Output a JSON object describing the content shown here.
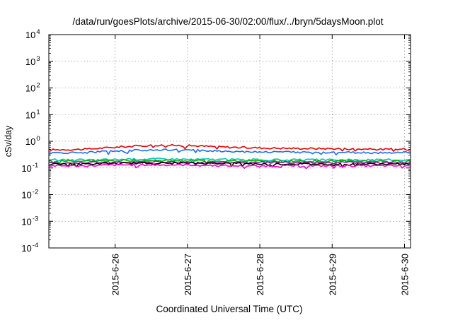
{
  "chart_data": {
    "type": "line",
    "title": "/data/run/goesPlots/archive/2015-06-30/02:00/flux/../bryn/5daysMoon.plot",
    "xlabel": "Coordinated Universal Time (UTC)",
    "ylabel": "cSv/day",
    "yscale": "log",
    "ylim": [
      0.0001,
      10000
    ],
    "xlim": [
      "2015-06-25 02:00",
      "2015-06-30 02:00"
    ],
    "yticks": [
      {
        "value": 0.0001,
        "base": "10",
        "exp": "-4"
      },
      {
        "value": 0.001,
        "base": "10",
        "exp": "-3"
      },
      {
        "value": 0.01,
        "base": "10",
        "exp": "-2"
      },
      {
        "value": 0.1,
        "base": "10",
        "exp": "-1"
      },
      {
        "value": 1,
        "base": "10",
        "exp": "0"
      },
      {
        "value": 10,
        "base": "10",
        "exp": "1"
      },
      {
        "value": 100,
        "base": "10",
        "exp": "2"
      },
      {
        "value": 1000,
        "base": "10",
        "exp": "3"
      },
      {
        "value": 10000,
        "base": "10",
        "exp": "4"
      }
    ],
    "xticks": [
      {
        "value": "2015-06-26 00:00",
        "label": "2015-6-26"
      },
      {
        "value": "2015-06-27 00:00",
        "label": "2015-6-27"
      },
      {
        "value": "2015-06-28 00:00",
        "label": "2015-6-28"
      },
      {
        "value": "2015-06-29 00:00",
        "label": "2015-6-29"
      },
      {
        "value": "2015-06-30 00:00",
        "label": "2015-6-30"
      }
    ],
    "grid": true,
    "legend": "none",
    "series": [
      {
        "color": "#ee0000",
        "x": [
          "2015-06-25 02:00",
          "2015-06-25 14:00",
          "2015-06-26 02:00",
          "2015-06-26 14:00",
          "2015-06-27 02:00",
          "2015-06-27 14:00",
          "2015-06-28 02:00",
          "2015-06-28 14:00",
          "2015-06-29 02:00",
          "2015-06-29 14:00",
          "2015-06-30 02:00"
        ],
        "y": [
          0.48,
          0.5,
          0.62,
          0.72,
          0.68,
          0.6,
          0.56,
          0.54,
          0.53,
          0.5,
          0.5
        ]
      },
      {
        "color": "#1a6cff",
        "x": [
          "2015-06-25 02:00",
          "2015-06-25 14:00",
          "2015-06-26 02:00",
          "2015-06-26 14:00",
          "2015-06-27 02:00",
          "2015-06-27 14:00",
          "2015-06-28 02:00",
          "2015-06-28 14:00",
          "2015-06-29 02:00",
          "2015-06-29 14:00",
          "2015-06-30 02:00"
        ],
        "y": [
          0.36,
          0.38,
          0.44,
          0.48,
          0.46,
          0.42,
          0.4,
          0.39,
          0.38,
          0.37,
          0.38
        ]
      },
      {
        "color": "#00c0c0",
        "x": [
          "2015-06-25 02:00",
          "2015-06-25 14:00",
          "2015-06-26 02:00",
          "2015-06-26 14:00",
          "2015-06-27 02:00",
          "2015-06-27 14:00",
          "2015-06-28 02:00",
          "2015-06-28 14:00",
          "2015-06-29 02:00",
          "2015-06-29 14:00",
          "2015-06-30 02:00"
        ],
        "y": [
          0.2,
          0.2,
          0.21,
          0.22,
          0.21,
          0.21,
          0.2,
          0.2,
          0.2,
          0.2,
          0.2
        ]
      },
      {
        "color": "#00b000",
        "x": [
          "2015-06-25 02:00",
          "2015-06-25 14:00",
          "2015-06-26 02:00",
          "2015-06-26 14:00",
          "2015-06-27 02:00",
          "2015-06-27 14:00",
          "2015-06-28 02:00",
          "2015-06-28 14:00",
          "2015-06-29 02:00",
          "2015-06-29 14:00",
          "2015-06-30 02:00"
        ],
        "y": [
          0.18,
          0.18,
          0.19,
          0.19,
          0.19,
          0.18,
          0.18,
          0.18,
          0.18,
          0.18,
          0.18
        ]
      },
      {
        "color": "#8a1a8a",
        "x": [
          "2015-06-25 02:00",
          "2015-06-25 14:00",
          "2015-06-26 02:00",
          "2015-06-26 14:00",
          "2015-06-27 02:00",
          "2015-06-27 14:00",
          "2015-06-28 02:00",
          "2015-06-28 14:00",
          "2015-06-29 02:00",
          "2015-06-29 14:00",
          "2015-06-30 02:00"
        ],
        "y": [
          0.15,
          0.16,
          0.16,
          0.17,
          0.16,
          0.16,
          0.16,
          0.16,
          0.16,
          0.16,
          0.16
        ]
      },
      {
        "color": "#000000",
        "x": [
          "2015-06-25 02:00",
          "2015-06-25 14:00",
          "2015-06-26 02:00",
          "2015-06-26 14:00",
          "2015-06-27 02:00",
          "2015-06-27 14:00",
          "2015-06-28 02:00",
          "2015-06-28 14:00",
          "2015-06-29 02:00",
          "2015-06-29 14:00",
          "2015-06-30 02:00"
        ],
        "y": [
          0.14,
          0.14,
          0.15,
          0.15,
          0.15,
          0.15,
          0.14,
          0.14,
          0.14,
          0.14,
          0.14
        ]
      },
      {
        "color": "#ff00cc",
        "x": [
          "2015-06-25 02:00",
          "2015-06-25 14:00",
          "2015-06-26 02:00",
          "2015-06-26 14:00",
          "2015-06-27 02:00",
          "2015-06-27 14:00",
          "2015-06-28 02:00",
          "2015-06-28 14:00",
          "2015-06-29 02:00",
          "2015-06-29 14:00",
          "2015-06-30 02:00"
        ],
        "y": [
          0.12,
          0.12,
          0.13,
          0.13,
          0.13,
          0.12,
          0.12,
          0.12,
          0.12,
          0.12,
          0.12
        ]
      }
    ]
  }
}
